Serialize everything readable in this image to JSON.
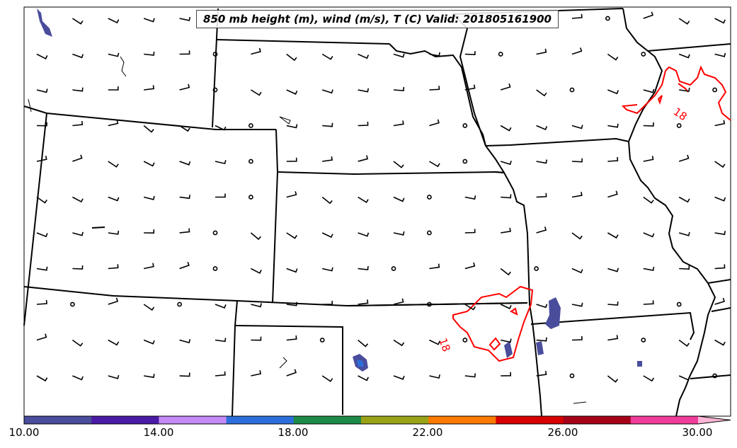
{
  "title": "850 mb height (m), wind (m/s), T (C) Valid: 201805161900",
  "contour_label": "18",
  "colorbar": {
    "ticks": [
      "10.00",
      "14.00",
      "18.00",
      "22.00",
      "26.00",
      "30.00"
    ],
    "colors": [
      "#4a4d9c",
      "#4b1aa6",
      "#c48af5",
      "#2c6fdc",
      "#1e8a47",
      "#9aa316",
      "#ff7a00",
      "#d80000",
      "#a50018",
      "#f03c9a",
      "#ffb6d7"
    ]
  }
}
